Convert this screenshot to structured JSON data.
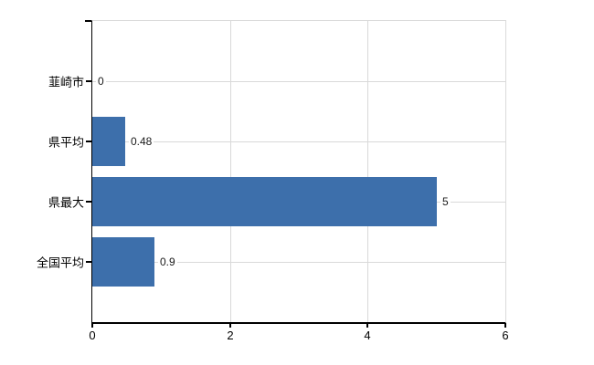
{
  "chart_data": {
    "type": "bar",
    "orientation": "horizontal",
    "title": "",
    "xlabel": "",
    "ylabel": "",
    "categories": [
      "韮崎市",
      "県平均",
      "県最大",
      "全国平均"
    ],
    "values": [
      0,
      0.48,
      5,
      0.9
    ],
    "value_labels": [
      "0",
      "0.48",
      "5",
      "0.9"
    ],
    "xlim": [
      0,
      6
    ],
    "x_ticks": [
      0,
      2,
      4,
      6
    ],
    "x_tick_labels": [
      "0",
      "2",
      "4",
      "6"
    ],
    "grid": true,
    "legend": false,
    "colors": {
      "bar_fill": "#3d6fab",
      "gridline": "#d9d9d9",
      "plot_border": "#dadada",
      "axis": "#000000",
      "text": "#000000",
      "value_text": "#1a1a1a"
    }
  }
}
